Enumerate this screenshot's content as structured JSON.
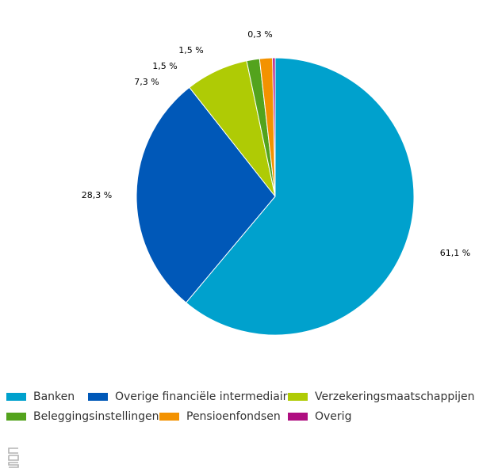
{
  "chart_data": {
    "type": "pie",
    "title": "",
    "legend_position": "bottom",
    "series": [
      {
        "name": "Banken",
        "value": 61.1,
        "label": "61,1 %",
        "color": "#00a1cd"
      },
      {
        "name": "Overige financiële intermediairs",
        "value": 28.3,
        "label": "28,3 %",
        "color": "#0058b8"
      },
      {
        "name": "Verzekeringsmaatschappijen",
        "value": 7.3,
        "label": "7,3 %",
        "color": "#afcb05"
      },
      {
        "name": "Beleggingsinstellingen",
        "value": 1.5,
        "label": "1,5 %",
        "color": "#53a31d"
      },
      {
        "name": "Pensioenfondsen",
        "value": 1.5,
        "label": "1,5 %",
        "color": "#f39200"
      },
      {
        "name": "Overig",
        "value": 0.3,
        "label": "0,3 %",
        "color": "#af0e80"
      }
    ]
  },
  "logo": {
    "icon": "cbs-logo-icon"
  }
}
